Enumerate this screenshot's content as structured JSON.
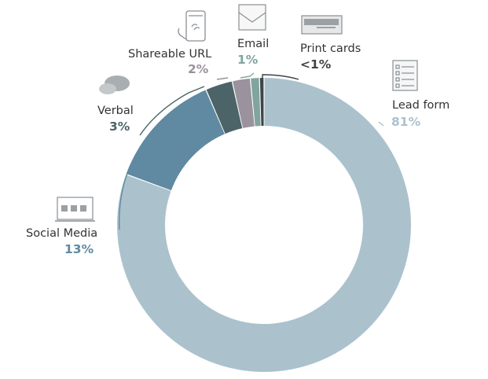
{
  "chart_data": {
    "type": "donut",
    "title": "",
    "series": [
      {
        "key": "lead",
        "label": "Lead form",
        "value_label": "81%",
        "value": 81.0,
        "color": "#abc2cd",
        "icon": "form-checklist-icon"
      },
      {
        "key": "social",
        "label": "Social Media",
        "value_label": "13%",
        "value": 13.0,
        "color": "#5f8aa1",
        "icon": "laptop-social-icon"
      },
      {
        "key": "verbal",
        "label": "Verbal",
        "value_label": "3%",
        "value": 3.0,
        "color": "#4c6468",
        "icon": "speech-bubble-icon"
      },
      {
        "key": "url",
        "label": "Shareable URL",
        "value_label": "2%",
        "value": 2.0,
        "color": "#9a929c",
        "icon": "phone-link-icon"
      },
      {
        "key": "email",
        "label": "Email",
        "value_label": "1%",
        "value": 1.0,
        "color": "#7fa59e",
        "icon": "envelope-icon"
      },
      {
        "key": "print",
        "label": "Print cards",
        "value_label": "<1%",
        "value": 0.5,
        "color": "#3f4448",
        "icon": "business-card-icon"
      }
    ],
    "label_colors": {
      "lead": "#abc2cd",
      "social": "#5f8aa1",
      "verbal": "#4c6468",
      "url": "#9a929c",
      "email": "#7fa59e",
      "print": "#3f4448"
    }
  }
}
